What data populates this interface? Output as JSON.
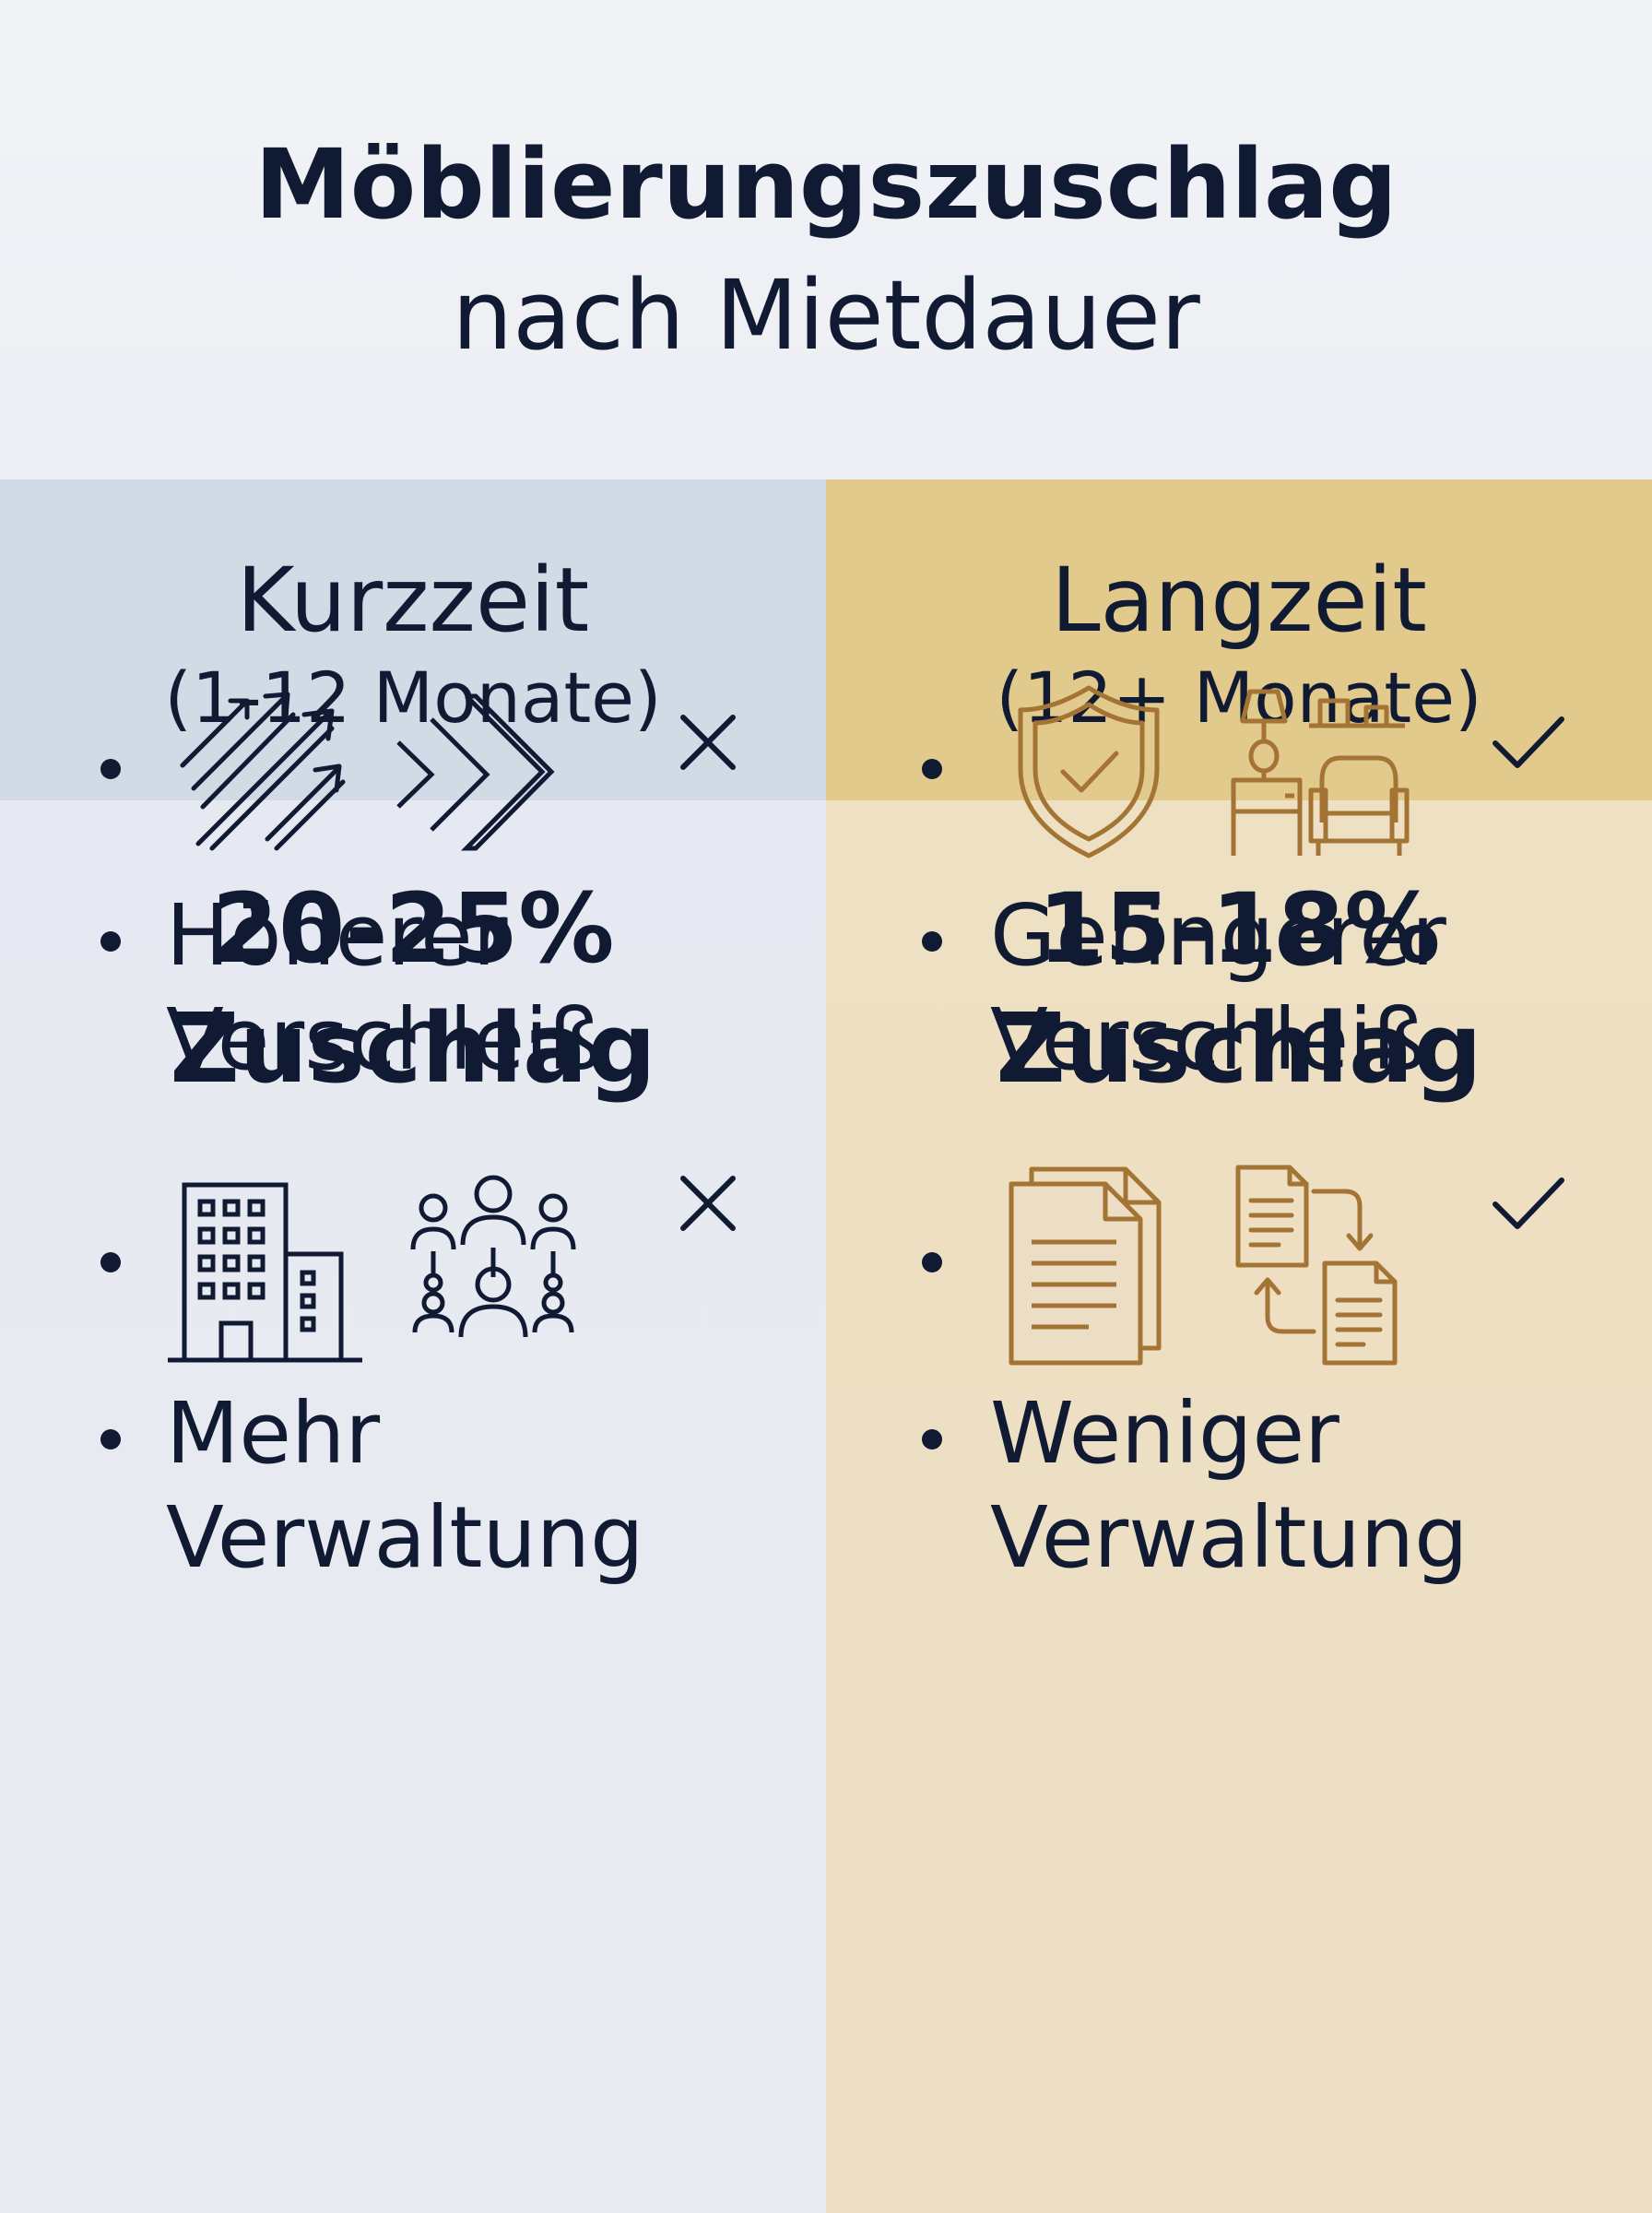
{
  "title": {
    "line1": "Möblierungszuschlag",
    "line2": "nach Mietdauer"
  },
  "colors": {
    "navy": "#101a33",
    "left_header": "#d2dae6",
    "right_header": "#e2c98c",
    "gold_icon": "#a47434"
  },
  "columns": [
    {
      "label": "Kurzzeit",
      "duration": "(1-12 Monate)",
      "percentage": "20-25%",
      "surcharge_label": "Zuschlag",
      "marker": "cross",
      "icons_row1": [
        "arrows-icon",
        "chevrons-icon"
      ],
      "item1": {
        "line1": "Höherer",
        "line2": "Verschleiß"
      },
      "icons_row2": [
        "office-building-icon",
        "people-network-icon"
      ],
      "item2": {
        "line1": "Mehr",
        "line2": "Verwaltung"
      }
    },
    {
      "label": "Langzeit",
      "duration": "(12+ Monate)",
      "percentage": "15-18%",
      "surcharge_label": "Zuschlag",
      "marker": "check",
      "icons_row1": [
        "shield-check-icon",
        "furniture-icon"
      ],
      "item1": {
        "line1": "Geringerer",
        "line2": "Verschleiß"
      },
      "icons_row2": [
        "documents-icon",
        "document-exchange-icon"
      ],
      "item2": {
        "line1": "Weniger",
        "line2": "Verwaltung"
      }
    }
  ]
}
